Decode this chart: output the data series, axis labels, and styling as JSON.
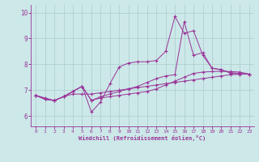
{
  "xlabel": "Windchill (Refroidissement éolien,°C)",
  "background_color": "#cce8e8",
  "line_color": "#993399",
  "x": [
    0,
    1,
    2,
    3,
    4,
    5,
    6,
    7,
    8,
    9,
    10,
    11,
    12,
    13,
    14,
    15,
    16,
    17,
    18,
    19,
    20,
    21,
    22,
    23
  ],
  "series1": [
    6.8,
    6.7,
    6.6,
    6.75,
    6.85,
    6.85,
    6.85,
    6.9,
    6.95,
    7.0,
    7.05,
    7.1,
    7.15,
    7.2,
    7.25,
    7.3,
    7.35,
    7.4,
    7.45,
    7.5,
    7.55,
    7.6,
    7.62,
    7.62
  ],
  "series2": [
    6.8,
    6.65,
    6.6,
    6.75,
    6.95,
    7.15,
    6.6,
    6.7,
    6.75,
    6.8,
    6.85,
    6.9,
    6.95,
    7.05,
    7.2,
    7.35,
    7.5,
    7.65,
    7.7,
    7.72,
    7.73,
    7.72,
    7.7,
    7.62
  ],
  "series3": [
    6.8,
    6.65,
    6.6,
    6.75,
    6.95,
    7.15,
    6.15,
    6.55,
    7.25,
    7.9,
    8.05,
    8.1,
    8.1,
    8.15,
    8.5,
    9.85,
    9.2,
    9.3,
    8.35,
    7.85,
    7.8,
    7.65,
    7.62,
    7.62
  ],
  "series4": [
    6.8,
    6.65,
    6.6,
    6.75,
    6.95,
    7.15,
    6.6,
    6.75,
    6.85,
    6.95,
    7.05,
    7.15,
    7.3,
    7.45,
    7.55,
    7.6,
    9.65,
    8.35,
    8.45,
    7.85,
    7.78,
    7.68,
    7.65,
    7.62
  ],
  "ylim": [
    5.6,
    10.3
  ],
  "xlim": [
    -0.5,
    23.5
  ],
  "yticks": [
    6,
    7,
    8,
    9,
    10
  ],
  "xticks": [
    0,
    1,
    2,
    3,
    4,
    5,
    6,
    7,
    8,
    9,
    10,
    11,
    12,
    13,
    14,
    15,
    16,
    17,
    18,
    19,
    20,
    21,
    22,
    23
  ],
  "grid_color": "#aacccc",
  "tick_color": "#993399",
  "label_color": "#993399",
  "axis_color": "#993399"
}
